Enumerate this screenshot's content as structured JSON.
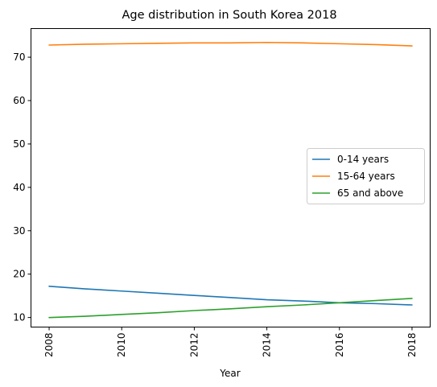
{
  "chart_data": {
    "type": "line",
    "title": "Age distribution in South Korea 2018",
    "xlabel": "Year",
    "ylabel": "",
    "x": [
      2008,
      2009,
      2010,
      2011,
      2012,
      2013,
      2014,
      2015,
      2016,
      2017,
      2018
    ],
    "series": [
      {
        "name": "0-14 years",
        "color": "#1f77b4",
        "values": [
          17.2,
          16.6,
          16.1,
          15.6,
          15.1,
          14.6,
          14.1,
          13.8,
          13.4,
          13.2,
          12.9
        ]
      },
      {
        "name": "15-64 years",
        "color": "#ff7f0e",
        "values": [
          72.8,
          73.0,
          73.1,
          73.2,
          73.3,
          73.3,
          73.4,
          73.3,
          73.1,
          72.9,
          72.6
        ]
      },
      {
        "name": "65 and above",
        "color": "#2ca02c",
        "values": [
          10.0,
          10.3,
          10.7,
          11.1,
          11.6,
          12.0,
          12.5,
          12.9,
          13.4,
          13.9,
          14.4
        ]
      }
    ],
    "xticks": [
      "2008",
      "2010",
      "2012",
      "2014",
      "2016",
      "2018"
    ],
    "yticks": [
      "10",
      "20",
      "30",
      "40",
      "50",
      "60",
      "70"
    ],
    "xlim": [
      2007.5,
      2018.5
    ],
    "ylim": [
      7.8,
      76.6
    ],
    "grid": false,
    "legend_position": "center-right"
  }
}
